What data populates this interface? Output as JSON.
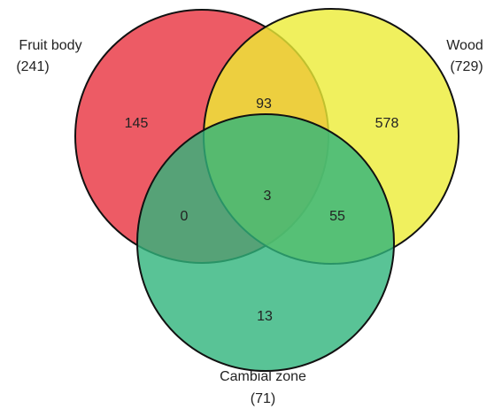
{
  "chart_data": {
    "type": "venn",
    "sets": [
      "Fruit body",
      "Wood",
      "Cambial zone"
    ],
    "values": [
      241,
      729,
      71
    ],
    "value_labels": [
      "(241)",
      "(729)",
      "(71)"
    ],
    "colors": [
      "#e8323f",
      "#ecec36",
      "#2fb47c"
    ],
    "region_values": [
      145,
      93,
      578,
      0,
      3,
      55,
      13
    ]
  }
}
